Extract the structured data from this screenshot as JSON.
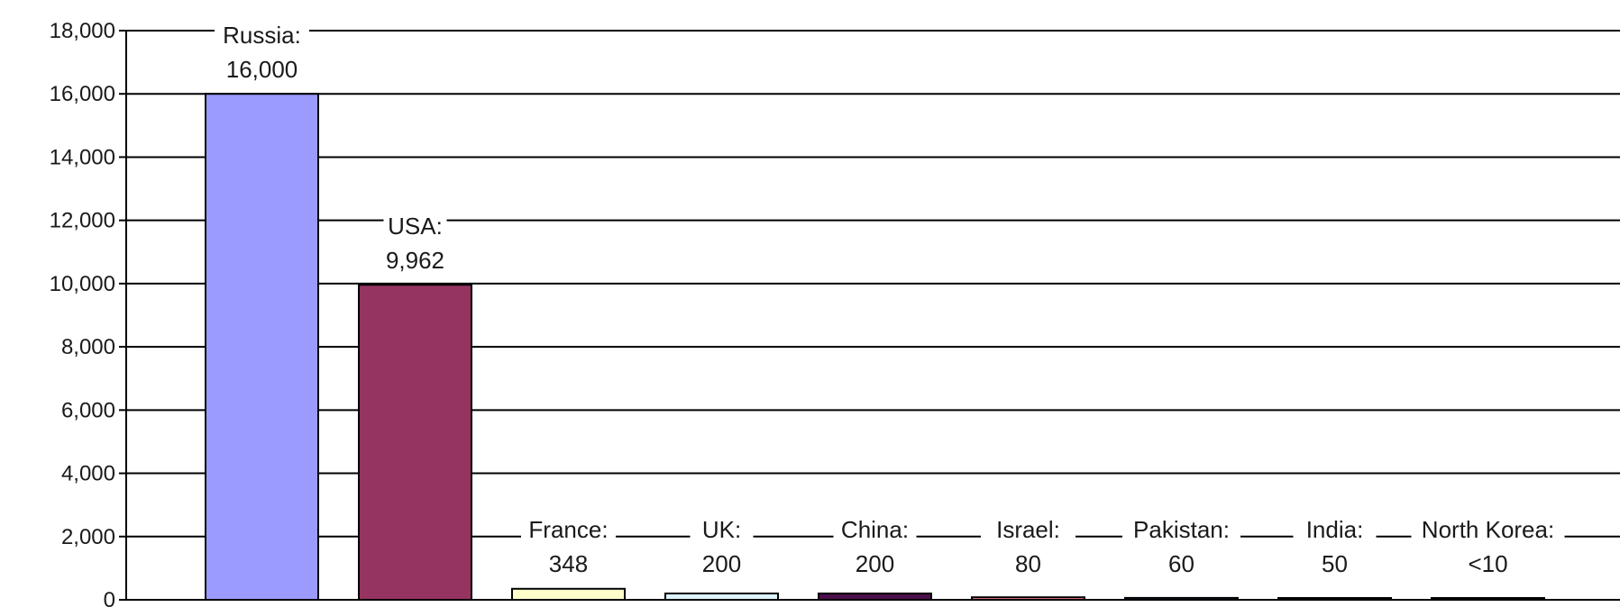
{
  "chart_data": {
    "type": "bar",
    "title": "",
    "xlabel": "",
    "ylabel": "",
    "ylim": [
      0,
      18000
    ],
    "yticks": [
      0,
      2000,
      4000,
      6000,
      8000,
      10000,
      12000,
      14000,
      16000,
      18000
    ],
    "ytick_labels": [
      "0",
      "2,000",
      "4,000",
      "6,000",
      "8,000",
      "10,000",
      "12,000",
      "14,000",
      "16,000",
      "18,000"
    ],
    "grid": true,
    "legend": false,
    "bars": [
      {
        "name": "Russia:",
        "label": "16,000",
        "value": 16000,
        "color": "#9b9bff"
      },
      {
        "name": "USA:",
        "label": "9,962",
        "value": 9962,
        "color": "#953460"
      },
      {
        "name": "France:",
        "label": "348",
        "value": 348,
        "color": "#ffffcc"
      },
      {
        "name": "UK:",
        "label": "200",
        "value": 200,
        "color": "#ddf5ff"
      },
      {
        "name": "China:",
        "label": "200",
        "value": 200,
        "color": "#4b0f4b"
      },
      {
        "name": "Israel:",
        "label": "80",
        "value": 80,
        "color": "#ff8080"
      },
      {
        "name": "Pakistan:",
        "label": "60",
        "value": 60,
        "color": "#0066cc"
      },
      {
        "name": "India:",
        "label": "50",
        "value": 50,
        "color": "#ccccff"
      },
      {
        "name": "North Korea:",
        "label": "<10",
        "value": 10,
        "color": "#000080"
      }
    ]
  }
}
